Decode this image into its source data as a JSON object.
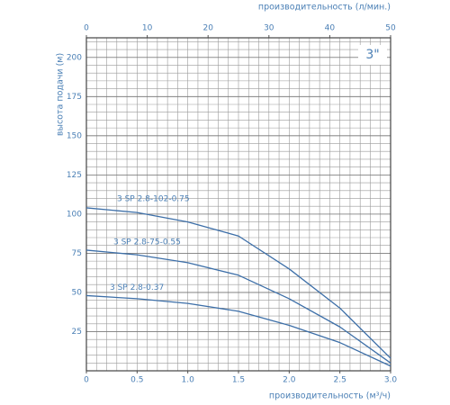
{
  "chart_data": {
    "type": "line",
    "badge": "3\"",
    "x_label": "производительность (м³/ч)",
    "x2_label": "производительность (л/мин.)",
    "y_label": "высота подачи (м)",
    "x": [
      0,
      0.5,
      1.0,
      1.5,
      2.0,
      2.5,
      3.0
    ],
    "series": [
      {
        "name": "3 SP 2.8-102-0.75",
        "color": "#3d6fa8",
        "values": [
          104,
          101,
          95,
          86,
          65,
          40,
          8
        ]
      },
      {
        "name": "3 SP 2.8-75-0.55",
        "color": "#3d6fa8",
        "values": [
          77,
          74,
          69,
          61,
          46,
          28,
          5
        ]
      },
      {
        "name": "3 SP 2.8-0.37",
        "color": "#3d6fa8",
        "values": [
          48,
          46,
          43,
          38,
          29,
          18,
          3
        ]
      }
    ],
    "xlim": [
      0,
      3.0
    ],
    "xticks": [
      0,
      0.5,
      {
        "value": 1.0,
        "label": "1.0"
      },
      1.5,
      {
        "value": 2.0,
        "label": "2.0"
      },
      2.5,
      {
        "value": 3.0,
        "label": "3.0"
      }
    ],
    "x2lim": [
      0,
      50
    ],
    "x2ticks": [
      0,
      10,
      20,
      30,
      40,
      50
    ],
    "ylim": [
      0,
      212.5
    ],
    "yticks": [
      25,
      50,
      75,
      100,
      125,
      150,
      175,
      200
    ],
    "grid": true,
    "minor_grid": {
      "x": 0.1,
      "y": 5
    }
  }
}
